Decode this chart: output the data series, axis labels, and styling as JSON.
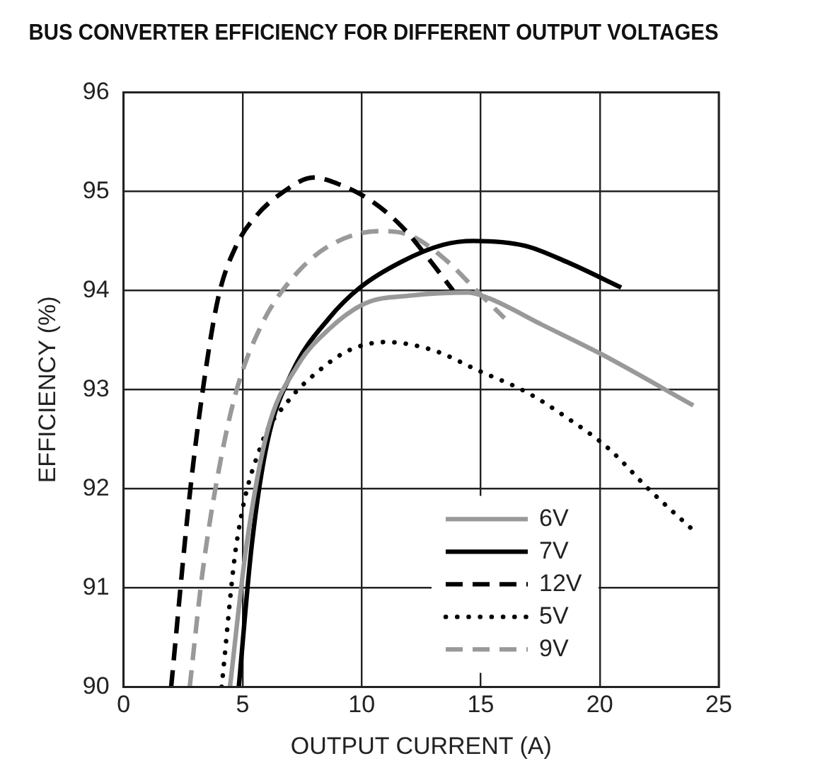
{
  "chart_data": {
    "type": "line",
    "title": "BUS CONVERTER EFFICIENCY FOR DIFFERENT OUTPUT VOLTAGES",
    "xlabel": "OUTPUT CURRENT (A)",
    "ylabel": "EFFICIENCY (%)",
    "xlim": [
      0,
      25
    ],
    "xticks": [
      0,
      5,
      10,
      15,
      20,
      25
    ],
    "ylim": [
      90,
      96
    ],
    "yticks": [
      90,
      91,
      92,
      93,
      94,
      95,
      96
    ],
    "grid": true,
    "legend": "bottom right",
    "marker": "none",
    "series": [
      {
        "name": "6V",
        "color": "#999999",
        "line_style": "solid",
        "x": [
          4.47,
          5.16,
          6.03,
          7.33,
          8.63,
          10.15,
          12.1,
          14.49,
          15.36,
          17.53,
          20.13,
          23.93
        ],
        "values": [
          90,
          91.42,
          92.57,
          93.25,
          93.61,
          93.87,
          93.95,
          93.98,
          93.92,
          93.66,
          93.35,
          92.84
        ]
      },
      {
        "name": "7V",
        "color": "#000000",
        "line_style": "solid",
        "x": [
          4.84,
          5.38,
          6.03,
          7.11,
          8.63,
          9.93,
          11.67,
          13.4,
          14.7,
          16.88,
          18.6,
          20.9
        ],
        "values": [
          90,
          91.42,
          92.46,
          93.19,
          93.72,
          94.03,
          94.29,
          94.46,
          94.5,
          94.45,
          94.29,
          94.03
        ]
      },
      {
        "name": "12V",
        "color": "#000000",
        "line_style": "dashed",
        "x": [
          2.0,
          2.78,
          3.32,
          3.97,
          4.73,
          5.6,
          6.68,
          7.98,
          9.07,
          10.37,
          11.67,
          12.75,
          13.84
        ],
        "values": [
          90,
          91.94,
          92.98,
          93.92,
          94.45,
          94.76,
          94.99,
          95.14,
          95.07,
          94.91,
          94.65,
          94.34,
          94.0
        ]
      },
      {
        "name": "5V",
        "color": "#000000",
        "line_style": "dotted",
        "x": [
          4.12,
          4.73,
          5.81,
          6.9,
          8.2,
          9.5,
          11.02,
          12.97,
          14.92,
          16.88,
          18.6,
          20.35,
          22.08,
          23.93
        ],
        "values": [
          90,
          91.42,
          92.46,
          92.88,
          93.19,
          93.4,
          93.48,
          93.4,
          93.19,
          92.98,
          92.72,
          92.41,
          91.99,
          91.58
        ]
      },
      {
        "name": "9V",
        "color": "#999999",
        "line_style": "dashed",
        "x": [
          2.78,
          3.32,
          3.97,
          4.73,
          5.81,
          7.11,
          8.63,
          10.8,
          12.1,
          13.62,
          14.7,
          16.0
        ],
        "values": [
          90,
          91.16,
          92.15,
          92.98,
          93.66,
          94.13,
          94.45,
          94.6,
          94.55,
          94.29,
          94.03,
          93.72
        ]
      }
    ]
  }
}
